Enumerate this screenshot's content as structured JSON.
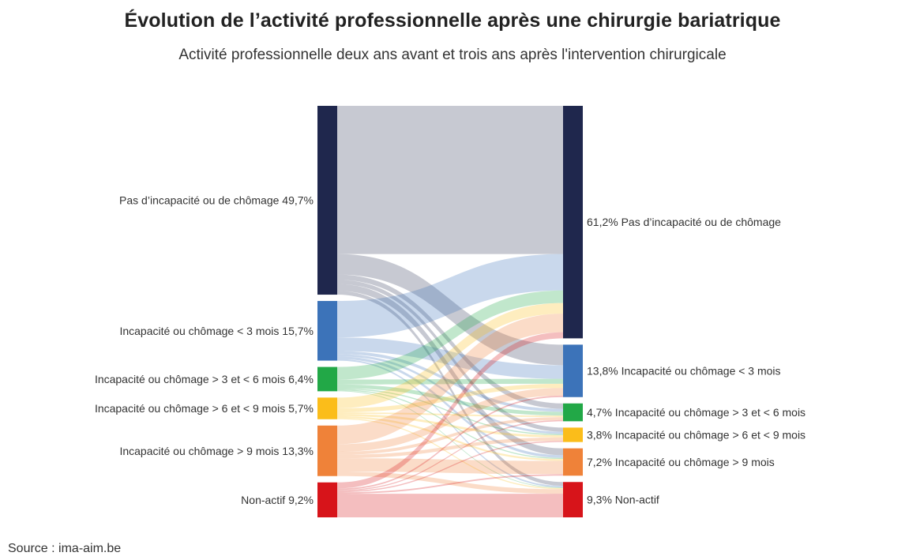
{
  "title": "Évolution de l’activité professionnelle après une chirurgie bariatrique",
  "subtitle": "Activité professionnelle deux ans avant et trois ans après l'intervention chirurgicale",
  "source": "Source : ima-aim.be",
  "chart_data": {
    "type": "sankey",
    "title": "Évolution de l’activité professionnelle après une chirurgie bariatrique",
    "subtitle": "Activité professionnelle deux ans avant et trois ans après l'intervention chirurgicale",
    "left_nodes": [
      {
        "name": "Pas d’incapacité ou de chômage",
        "value": 49.7,
        "label": "Pas d’incapacité ou de chômage 49,7%",
        "color": "#1f274d"
      },
      {
        "name": "Incapacité ou chômage < 3 mois",
        "value": 15.7,
        "label": "Incapacité ou chômage < 3 mois 15,7%",
        "color": "#3c73b9"
      },
      {
        "name": "Incapacité ou chômage > 3 et < 6 mois",
        "value": 6.4,
        "label": "Incapacité ou chômage > 3 et < 6 mois 6,4%",
        "color": "#22a847"
      },
      {
        "name": "Incapacité ou chômage > 6 et < 9 mois",
        "value": 5.7,
        "label": "Incapacité ou chômage > 6 et < 9 mois 5,7%",
        "color": "#fbbd1a"
      },
      {
        "name": "Incapacité ou chômage > 9 mois",
        "value": 13.3,
        "label": "Incapacité ou chômage > 9 mois 13,3%",
        "color": "#ef8239"
      },
      {
        "name": "Non-actif",
        "value": 9.2,
        "label": "Non-actif 9,2%",
        "color": "#d7141a"
      }
    ],
    "right_nodes": [
      {
        "name": "Pas d’incapacité ou de chômage",
        "value": 61.2,
        "label": "61,2% Pas d’incapacité ou de chômage",
        "color": "#1f274d"
      },
      {
        "name": "Incapacité ou chômage < 3 mois",
        "value": 13.8,
        "label": "13,8% Incapacité ou chômage < 3 mois",
        "color": "#3c73b9"
      },
      {
        "name": "Incapacité ou chômage > 3 et < 6 mois",
        "value": 4.7,
        "label": "4,7% Incapacité ou chômage > 3 et < 6 mois",
        "color": "#22a847"
      },
      {
        "name": "Incapacité ou chômage > 6 et < 9 mois",
        "value": 3.8,
        "label": "3,8% Incapacité ou chômage > 6 et < 9 mois",
        "color": "#fbbd1a"
      },
      {
        "name": "Incapacité ou chômage > 9 mois",
        "value": 7.2,
        "label": "7,2% Incapacité ou chômage > 9 mois",
        "color": "#ef8239"
      },
      {
        "name": "Non-actif",
        "value": 9.3,
        "label": "9,3% Non-actif",
        "color": "#d7141a"
      }
    ],
    "flows": [
      [
        39.0,
        5.4,
        1.4,
        1.1,
        1.8,
        1.0
      ],
      [
        9.6,
        3.6,
        0.8,
        0.6,
        0.7,
        0.4
      ],
      [
        3.3,
        1.3,
        1.0,
        0.3,
        0.3,
        0.2
      ],
      [
        2.8,
        1.1,
        0.4,
        0.6,
        0.5,
        0.3
      ],
      [
        4.9,
        2.0,
        0.8,
        0.9,
        3.5,
        1.2
      ],
      [
        1.6,
        0.4,
        0.3,
        0.3,
        0.4,
        6.2
      ]
    ]
  }
}
